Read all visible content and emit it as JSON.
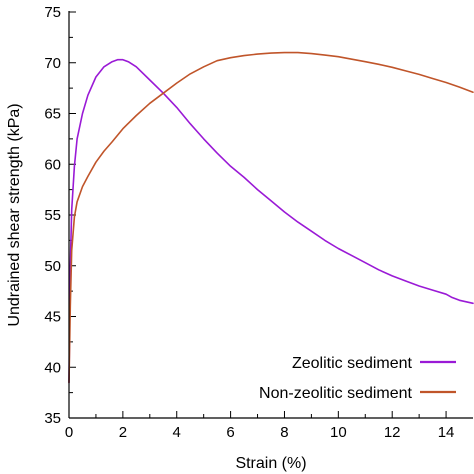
{
  "chart_data": {
    "type": "line",
    "title": "",
    "xlabel": "Strain (%)",
    "ylabel": "Undrained shear strength (kPa)",
    "xlim": [
      0,
      15
    ],
    "ylim": [
      35,
      75
    ],
    "xticks": [
      0,
      2,
      4,
      6,
      8,
      10,
      12,
      14
    ],
    "yticks": [
      35,
      40,
      45,
      50,
      55,
      60,
      65,
      70,
      75
    ],
    "grid": false,
    "legend_position": "bottom-right",
    "series": [
      {
        "name": "Zeolitic sediment",
        "color": "#9a1ad6",
        "x": [
          0,
          0.05,
          0.1,
          0.2,
          0.3,
          0.5,
          0.7,
          1.0,
          1.3,
          1.6,
          1.8,
          2.0,
          2.2,
          2.5,
          3.0,
          3.5,
          4.0,
          4.5,
          5.0,
          5.5,
          6.0,
          6.5,
          7.0,
          7.5,
          8.0,
          8.5,
          9.0,
          9.5,
          10.0,
          10.5,
          11.0,
          11.5,
          12.0,
          12.5,
          13.0,
          13.5,
          14.0,
          14.2,
          14.5,
          15.0
        ],
        "y": [
          38.5,
          50.0,
          55.5,
          59.8,
          62.5,
          65.0,
          66.8,
          68.6,
          69.6,
          70.1,
          70.3,
          70.3,
          70.1,
          69.6,
          68.3,
          67.0,
          65.6,
          64.0,
          62.5,
          61.1,
          59.8,
          58.7,
          57.5,
          56.4,
          55.3,
          54.3,
          53.4,
          52.5,
          51.7,
          51.0,
          50.3,
          49.6,
          49.0,
          48.5,
          48.0,
          47.6,
          47.2,
          46.9,
          46.6,
          46.3
        ]
      },
      {
        "name": "Non-zeolitic sediment",
        "color": "#c0552a",
        "x": [
          0,
          0.05,
          0.1,
          0.2,
          0.3,
          0.5,
          0.7,
          1.0,
          1.3,
          1.6,
          2.0,
          2.5,
          3.0,
          3.5,
          4.0,
          4.5,
          5.0,
          5.5,
          6.0,
          6.5,
          7.0,
          7.5,
          8.0,
          8.5,
          9.0,
          9.5,
          10.0,
          10.5,
          11.0,
          11.5,
          12.0,
          12.5,
          13.0,
          13.5,
          14.0,
          14.5,
          15.0
        ],
        "y": [
          38.5,
          46.0,
          51.5,
          54.8,
          56.3,
          57.8,
          58.8,
          60.2,
          61.3,
          62.2,
          63.5,
          64.8,
          66.0,
          67.0,
          68.0,
          68.9,
          69.6,
          70.2,
          70.5,
          70.7,
          70.85,
          70.95,
          71.0,
          71.0,
          70.9,
          70.75,
          70.6,
          70.35,
          70.1,
          69.85,
          69.55,
          69.2,
          68.85,
          68.45,
          68.05,
          67.6,
          67.1
        ]
      }
    ]
  }
}
